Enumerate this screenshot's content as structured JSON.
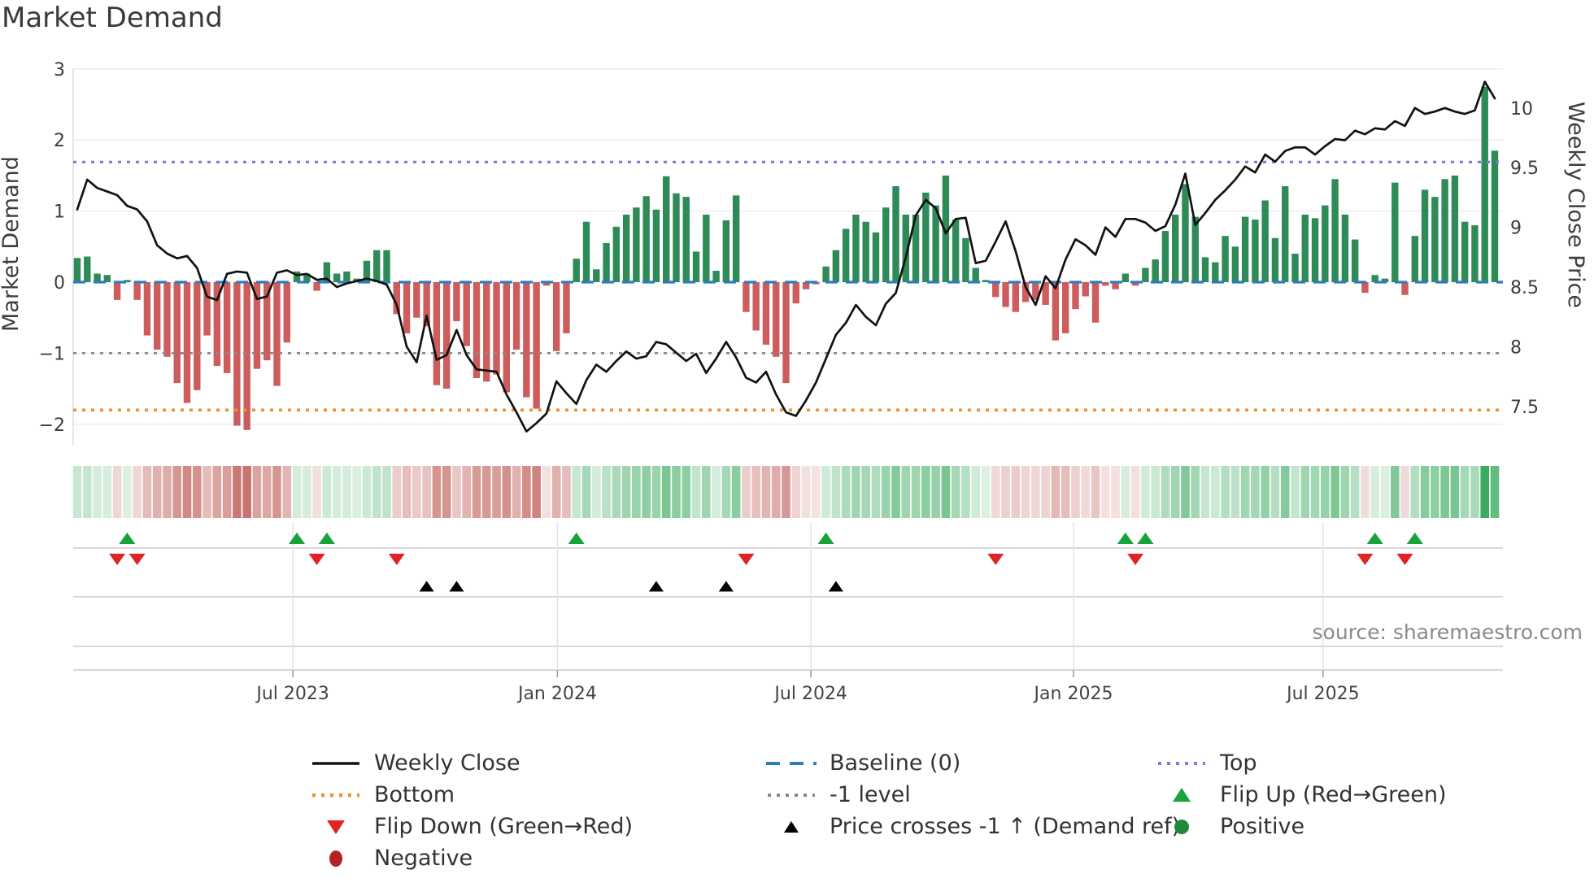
{
  "title": "Market Demand",
  "source": "source: sharemaestro.com",
  "axes": {
    "left_title": "Market Demand",
    "right_title": "Weekly Close Price",
    "left_ticks": [
      3,
      2,
      1,
      0,
      -1,
      -2
    ],
    "right_ticks": [
      10,
      9.5,
      9,
      8.5,
      8,
      7.5
    ],
    "x_ticks": [
      {
        "label": "Jul 2023",
        "week": 21.6
      },
      {
        "label": "Jan 2024",
        "week": 48.1
      },
      {
        "label": "Jul 2024",
        "week": 73.5
      },
      {
        "label": "Jan 2025",
        "week": 99.8
      },
      {
        "label": "Jul 2025",
        "week": 124.8
      }
    ]
  },
  "legend": {
    "weekly_close": "Weekly Close",
    "baseline": "Baseline (0)",
    "top": "Top",
    "bottom": "Bottom",
    "minus1": "-1 level",
    "flip_up": "Flip Up (Red→Green)",
    "flip_down": "Flip Down (Green→Red)",
    "cross": "Price crosses -1 ↑ (Demand ref)",
    "positive": "Positive",
    "negative": "Negative"
  },
  "colors": {
    "background": "#ffffff",
    "title_text": "#3a3a3a",
    "text": "#3d3d3d",
    "muted_text": "#8a8a8a",
    "grid": "#ebebf2",
    "spine": "#d4d4de",
    "panel_line": "#cccccc",
    "panel_grid": "#e3e3e8",
    "bar_positive": "#2e8b57",
    "bar_negative": "#cd5c5c",
    "price_line": "#121212",
    "baseline": "#2e7ebc",
    "top_line": "#8677dd",
    "bottom_line": "#e8952f",
    "minus1_line": "#8a8a8a",
    "flip_up": "#18a23a",
    "flip_down": "#e02424",
    "cross": "#000000",
    "positive_dot": "#1e8b3a",
    "negative_dot": "#b22222",
    "heat_green": [
      60,
      171,
      95
    ],
    "heat_red": [
      192,
      97,
      91
    ]
  },
  "chart_data": {
    "type": "bar",
    "title": "Market Demand",
    "series_note": "weekly demand bars (left axis) + weekly close price line (right axis), Feb 2023 - Nov 2025",
    "ylim_left": [
      -2.3,
      3
    ],
    "levels": {
      "baseline": 0,
      "top": 1.69,
      "bottom": -1.8,
      "minus1": -1
    },
    "demand": [
      0.34,
      0.36,
      0.12,
      0.1,
      -0.25,
      0.03,
      -0.25,
      -0.75,
      -0.95,
      -1.05,
      -1.42,
      -1.7,
      -1.52,
      -0.75,
      -1.18,
      -1.28,
      -2.02,
      -2.08,
      -1.22,
      -1.1,
      -1.46,
      -0.85,
      0.15,
      0.12,
      -0.12,
      0.28,
      0.12,
      0.15,
      0.05,
      0.3,
      0.45,
      0.45,
      -0.45,
      -0.72,
      -0.5,
      -0.62,
      -1.45,
      -1.5,
      -0.55,
      -0.9,
      -1.35,
      -1.4,
      -1.3,
      -1.55,
      -0.95,
      -1.62,
      -1.78,
      -0.05,
      -0.97,
      -0.72,
      0.33,
      0.85,
      0.18,
      0.55,
      0.78,
      0.95,
      1.05,
      1.21,
      1.02,
      1.49,
      1.25,
      1.2,
      0.43,
      0.95,
      0.16,
      0.87,
      1.22,
      -0.42,
      -0.68,
      -0.88,
      -1.05,
      -1.42,
      -0.3,
      -0.1,
      -0.03,
      0.22,
      0.45,
      0.75,
      0.95,
      0.85,
      0.7,
      1.05,
      1.35,
      0.95,
      0.95,
      1.26,
      1.08,
      1.5,
      0.88,
      0.62,
      0.2,
      0.03,
      -0.21,
      -0.35,
      -0.42,
      -0.28,
      -0.25,
      -0.32,
      -0.82,
      -0.72,
      -0.38,
      -0.2,
      -0.57,
      -0.05,
      -0.1,
      0.12,
      -0.05,
      0.2,
      0.32,
      0.72,
      0.95,
      1.38,
      0.92,
      0.35,
      0.28,
      0.65,
      0.5,
      0.92,
      0.88,
      1.15,
      0.62,
      1.35,
      0.4,
      0.95,
      0.9,
      1.08,
      1.45,
      0.95,
      0.6,
      -0.15,
      0.1,
      0.05,
      1.4,
      -0.18,
      0.65,
      1.3,
      1.2,
      1.45,
      1.5,
      0.85,
      0.8,
      2.75,
      1.85
    ],
    "price": [
      9.15,
      9.4,
      9.33,
      9.3,
      9.27,
      9.18,
      9.15,
      9.05,
      8.85,
      8.78,
      8.74,
      8.76,
      8.66,
      8.42,
      8.39,
      8.61,
      8.63,
      8.62,
      8.4,
      8.42,
      8.62,
      8.64,
      8.6,
      8.61,
      8.56,
      8.57,
      8.5,
      8.53,
      8.55,
      8.57,
      8.55,
      8.52,
      8.35,
      8.0,
      7.87,
      8.26,
      7.89,
      7.93,
      8.14,
      7.93,
      7.81,
      7.8,
      7.79,
      7.6,
      7.45,
      7.29,
      7.36,
      7.44,
      7.71,
      7.61,
      7.52,
      7.72,
      7.85,
      7.79,
      7.88,
      7.96,
      7.9,
      7.92,
      8.04,
      8.02,
      7.95,
      7.88,
      7.94,
      7.78,
      7.9,
      8.04,
      7.91,
      7.74,
      7.7,
      7.79,
      7.6,
      7.45,
      7.42,
      7.55,
      7.7,
      7.9,
      8.1,
      8.2,
      8.35,
      8.25,
      8.18,
      8.36,
      8.45,
      8.75,
      9.1,
      9.23,
      9.16,
      8.95,
      9.07,
      9.08,
      8.7,
      8.72,
      8.88,
      9.05,
      8.8,
      8.5,
      8.35,
      8.59,
      8.49,
      8.73,
      8.9,
      8.85,
      8.77,
      9.0,
      8.92,
      9.07,
      9.07,
      9.04,
      8.97,
      9.01,
      9.19,
      9.45,
      9.02,
      9.12,
      9.23,
      9.31,
      9.4,
      9.51,
      9.46,
      9.61,
      9.55,
      9.64,
      9.67,
      9.67,
      9.61,
      9.68,
      9.74,
      9.73,
      9.81,
      9.78,
      9.83,
      9.82,
      9.89,
      9.85,
      10.0,
      9.95,
      9.97,
      10.0,
      9.97,
      9.95,
      9.98,
      10.22,
      10.08
    ],
    "flip_up_weeks": [
      5,
      22,
      25,
      50,
      75,
      105,
      107,
      130,
      134
    ],
    "flip_down_weeks": [
      4,
      6,
      24,
      32,
      67,
      92,
      106,
      129,
      133
    ],
    "price_cross_weeks": [
      35,
      38,
      58,
      65,
      76
    ]
  }
}
